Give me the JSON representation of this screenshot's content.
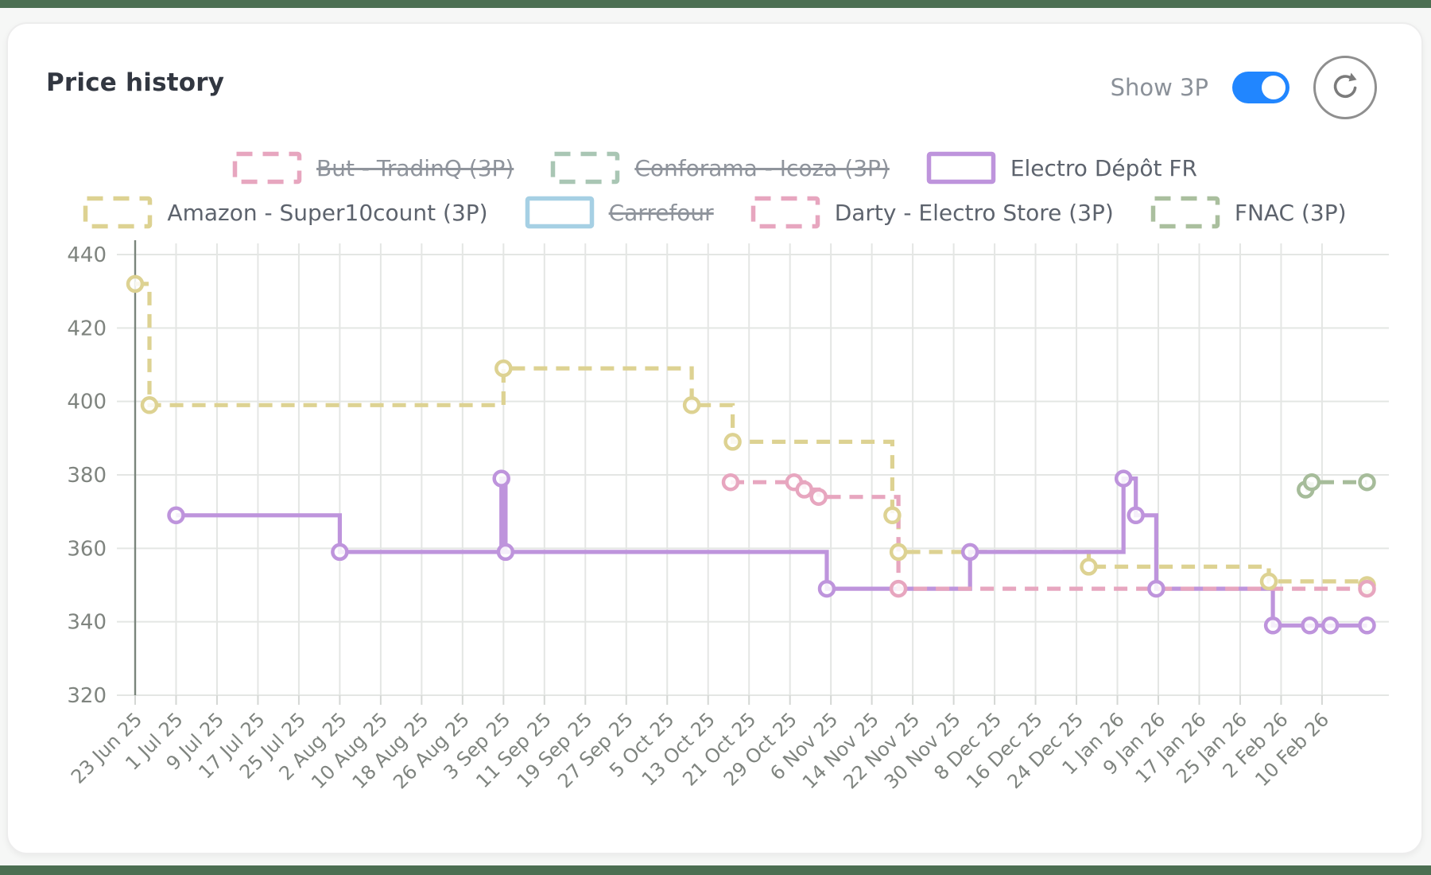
{
  "header": {
    "title": "Price history",
    "show_3p_label": "Show 3P",
    "toggle_state": "on",
    "toggle_color": "#2186ff",
    "refresh_icon": "refresh-clockwise-arrow"
  },
  "theme": {
    "strip_green": "#4c6f52",
    "page_bg": "#f6f7f6",
    "card_bg": "#ffffff",
    "grid_color": "#e4e6e4",
    "axis_line_color": "#7a857c",
    "tick_label_color": "#7f847f",
    "legend_text_color": "#5d636d",
    "legend_disabled_text_color": "#8f949c"
  },
  "chart_data": {
    "type": "line",
    "interpolation": "step-after",
    "title": "Price history",
    "xlabel": "",
    "ylabel": "",
    "ylim": [
      320,
      440
    ],
    "y_ticks": [
      440,
      420,
      400,
      380,
      360,
      340,
      320
    ],
    "x_tick_labels": [
      "23 Jun 25",
      "1 Jul 25",
      "9 Jul 25",
      "17 Jul 25",
      "25 Jul 25",
      "2 Aug 25",
      "10 Aug 25",
      "18 Aug 25",
      "26 Aug 25",
      "3 Sep 25",
      "11 Sep 25",
      "19 Sep 25",
      "27 Sep 25",
      "5 Oct 25",
      "13 Oct 25",
      "21 Oct 25",
      "29 Oct 25",
      "6 Nov 25",
      "14 Nov 25",
      "22 Nov 25",
      "30 Nov 25",
      "8 Dec 25",
      "16 Dec 25",
      "24 Dec 25",
      "1 Jan 26",
      "9 Jan 26",
      "17 Jan 26",
      "25 Jan 26",
      "2 Feb 26",
      "10 Feb 26"
    ],
    "x_unit": "tick_index",
    "grid": true,
    "legend_position": "top",
    "legend": [
      {
        "label": "But - TradinQ (3P)",
        "color": "#e7a6bf",
        "dash": true,
        "disabled": true,
        "row": 1
      },
      {
        "label": "Conforama - Icoza (3P)",
        "color": "#a9c6b4",
        "dash": true,
        "disabled": true,
        "row": 1
      },
      {
        "label": "Electro Dépôt FR",
        "color": "#be94dc",
        "dash": false,
        "disabled": false,
        "row": 1
      },
      {
        "label": "Amazon - Super10count (3P)",
        "color": "#ddd292",
        "dash": true,
        "disabled": false,
        "row": 2
      },
      {
        "label": "Carrefour",
        "color": "#a6d0e4",
        "dash": false,
        "disabled": true,
        "row": 2
      },
      {
        "label": "Darty - Electro Store (3P)",
        "color": "#e7a6bf",
        "dash": true,
        "disabled": false,
        "row": 2
      },
      {
        "label": "FNAC (3P)",
        "color": "#aabf9e",
        "dash": true,
        "disabled": false,
        "row": 2
      }
    ],
    "series": [
      {
        "name": "Amazon - Super10count (3P)",
        "color": "#ddd292",
        "dash": true,
        "points": [
          [
            0,
            432
          ],
          [
            0.35,
            399
          ],
          [
            9,
            409
          ],
          [
            13.6,
            399
          ],
          [
            14.6,
            389
          ],
          [
            18.5,
            369
          ],
          [
            18.65,
            359
          ],
          [
            23.3,
            355
          ],
          [
            27.7,
            351
          ],
          [
            30.1,
            350
          ]
        ]
      },
      {
        "name": "Electro Dépôt FR",
        "color": "#be94dc",
        "dash": false,
        "points": [
          [
            1,
            369
          ],
          [
            5,
            359
          ],
          [
            8.95,
            379
          ],
          [
            9.05,
            359
          ],
          [
            16.9,
            349
          ],
          [
            20.4,
            359
          ],
          [
            24.15,
            379
          ],
          [
            24.45,
            369
          ],
          [
            24.95,
            349
          ],
          [
            27.8,
            339
          ],
          [
            28.7,
            339
          ],
          [
            29.2,
            339
          ],
          [
            30.1,
            339
          ]
        ]
      },
      {
        "name": "Darty - Electro Store (3P)",
        "color": "#e7a6bf",
        "dash": true,
        "points": [
          [
            14.55,
            378
          ],
          [
            16.1,
            378
          ],
          [
            16.35,
            376
          ],
          [
            16.7,
            374
          ],
          [
            18.65,
            349
          ],
          [
            30.1,
            349
          ]
        ]
      },
      {
        "name": "FNAC (3P)",
        "color": "#a6bc9a",
        "dash": true,
        "points": [
          [
            28.6,
            376
          ],
          [
            28.75,
            378
          ],
          [
            30.1,
            378
          ]
        ]
      }
    ]
  }
}
